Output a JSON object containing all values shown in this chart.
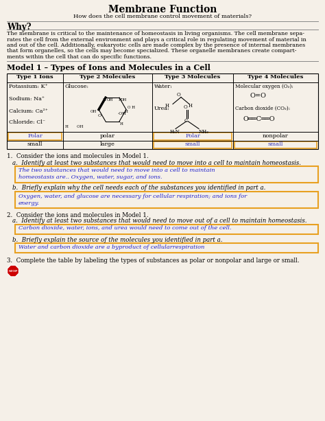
{
  "title": "Membrane Function",
  "subtitle": "How does the cell membrane control movement of materials?",
  "why_heading": "Why?",
  "why_lines": [
    "The membrane is critical to the maintenance of homeostasis in living organisms. The cell membrane sepa-",
    "rates the cell from the external environment and plays a critical role in regulating movement of material in",
    "and out of the cell. Additionally, eukaryotic cells are made complex by the presence of internal membranes",
    "that form organelles, so the cells may become specialized. These organelle membranes create compart-",
    "ments within the cell that can do specific functions."
  ],
  "model_heading": "Model 1 – Types of Ions and Molecules in a Cell",
  "table_headers": [
    "Type 1 Ions",
    "Type 2 Molecules",
    "Type 3 Molecules",
    "Type 4 Molecules"
  ],
  "col1_items": [
    "Potassium: K⁺",
    "Sodium: Na⁺",
    "Calcium: Ca²⁺",
    "Chloride: Cl⁻"
  ],
  "col1_polar_label": "Polar",
  "col1_size_label": "small",
  "col2_polar_label": "polar",
  "col2_size_label": "large",
  "col3_polar_label": "Polar",
  "col3_size_label": "small",
  "col4_polar_label": "nonpolar",
  "col4_size_label": "small",
  "q1_text": "1.  Consider the ions and molecules in Model 1.",
  "q1a_text": "a.  Identify at least two substances that would need to move into a cell to maintain homeostasis.",
  "q1a_answer_lines": [
    "The two substances that would need to move into a cell to maintain",
    "homeostasis are.. Oxygen, water, sugar, and ions."
  ],
  "q1b_text": "b.  Briefly explain why the cell needs each of the substances you identified in part a.",
  "q1b_answer_lines": [
    "Oxygen, water, and glucose are necessary for cellular respiration; and ions for",
    "energy."
  ],
  "q2_text": "2.  Consider the ions and molecules in Model 1.",
  "q2a_text": "a.  Identify at least two substances that would need to move out of a cell to maintain homeostasis.",
  "q2a_answer": "Carbon dioxide, water, ions, and urea would need to come out of the cell.",
  "q2b_text": "b.  Briefly explain the source of the molecules you identified in part a.",
  "q2b_answer": "Water and carbon dioxide are a byproduct of cellularrespiration",
  "q3_text": "3.  Complete the table by labeling the types of substances as polar or nonpolar and large or small.",
  "bg_color": "#f5f0e8",
  "answer_box_border": "#e8a020",
  "answer_text_color": "#2222cc",
  "blue_text_color": "#3333bb"
}
